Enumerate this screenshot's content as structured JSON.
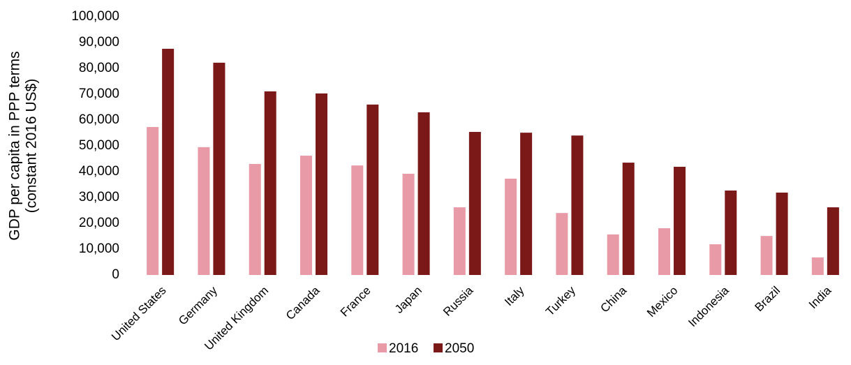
{
  "chart_data": {
    "type": "bar",
    "ylabel": [
      "GDP per capita in PPP terms",
      "(constant 2016 US$)"
    ],
    "categories": [
      "United States",
      "Germany",
      "United Kingdom",
      "Canada",
      "France",
      "Japan",
      "Russia",
      "Italy",
      "Turkey",
      "China",
      "Mexico",
      "Indonesia",
      "Brazil",
      "India"
    ],
    "series": [
      {
        "name": "2016",
        "color": "#e89ba6",
        "values": [
          57300,
          49500,
          43000,
          46200,
          42400,
          39200,
          26200,
          37300,
          24000,
          15700,
          18100,
          11900,
          15100,
          6800
        ]
      },
      {
        "name": "2050",
        "color": "#7b1818",
        "values": [
          87600,
          82200,
          71100,
          70300,
          66000,
          63000,
          55400,
          55100,
          54000,
          43500,
          41900,
          32700,
          31900,
          26200
        ]
      }
    ],
    "ylim": [
      0,
      100000
    ],
    "yticks": [
      0,
      {
        "value": 10000,
        "label": "10,000"
      },
      {
        "value": 20000,
        "label": "20,000"
      },
      {
        "value": 30000,
        "label": "30,000"
      },
      {
        "value": 40000,
        "label": "40,000"
      },
      {
        "value": 50000,
        "label": "50,000"
      },
      {
        "value": 60000,
        "label": "60,000"
      },
      {
        "value": 70000,
        "label": "70,000"
      },
      {
        "value": 80000,
        "label": "80,000"
      },
      {
        "value": 90000,
        "label": "90,000"
      },
      {
        "value": 100000,
        "label": "100,000"
      }
    ],
    "legend": "bottom"
  }
}
